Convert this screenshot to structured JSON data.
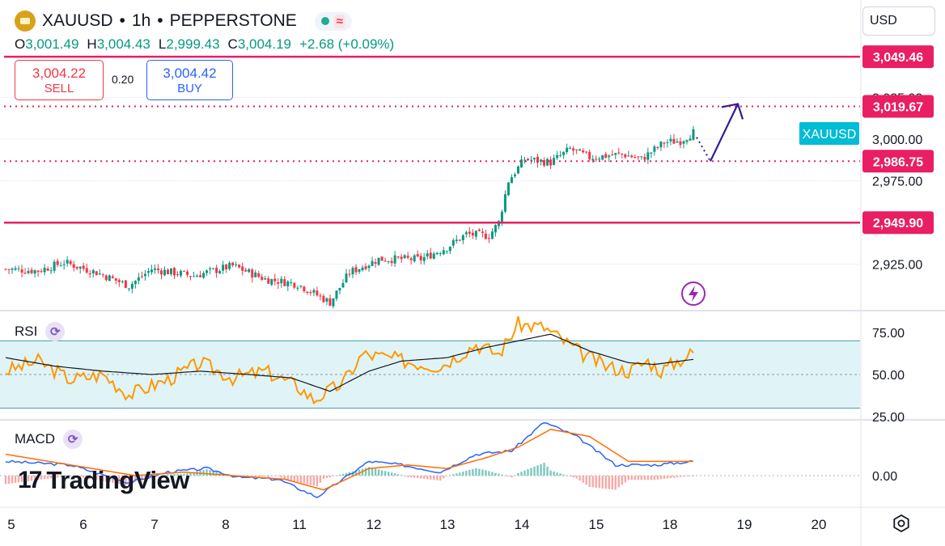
{
  "header": {
    "symbol": "XAUUSD",
    "interval": "1h",
    "exchange": "PEPPERSTONE",
    "coin_icon": "gold-coin-icon",
    "market_status_icon": "market-open-dot-icon",
    "wave_icon": "approx-wave-icon"
  },
  "ohlc": {
    "open_label": "O",
    "open": "3,001.49",
    "high_label": "H",
    "high": "3,004.43",
    "low_label": "L",
    "low": "2,999.43",
    "close_label": "C",
    "close": "3,004.19",
    "change": "+2.68 (+0.09%)"
  },
  "trade": {
    "sell_price": "3,004.22",
    "sell_label": "SELL",
    "spread": "0.20",
    "buy_price": "3,004.42",
    "buy_label": "BUY"
  },
  "currency_button": "USD",
  "rsi_label": "RSI",
  "macd_label": "MACD",
  "logo_text": "TradingView",
  "colors": {
    "up": "#089981",
    "down": "#f23645",
    "level": "#e91e63",
    "arrow": "#311b92",
    "rsi": "#ff9800",
    "rsi_band": "#e0f4f7",
    "macd": "#2962ff",
    "signal": "#ff6d00",
    "tag": "#00bcd4"
  },
  "chart_data": {
    "type": "candlestick",
    "symbol_tag": "XAUUSD",
    "x_tick_labels": [
      "5",
      "6",
      "7",
      "8",
      "11",
      "12",
      "13",
      "14",
      "15",
      "18",
      "19",
      "20"
    ],
    "price_axis_ticks": [
      "3,025.00",
      "3,000.00",
      "2,975.00",
      "2,925.00"
    ],
    "price_axis_values": [
      3025,
      3000,
      2975,
      2925
    ],
    "levels": [
      {
        "value": 3049.46,
        "label": "3,049.46",
        "style": "solid"
      },
      {
        "value": 3019.67,
        "label": "3,019.67",
        "style": "dotted"
      },
      {
        "value": 2986.75,
        "label": "2,986.75",
        "style": "dotted"
      },
      {
        "value": 2949.9,
        "label": "2,949.90",
        "style": "solid"
      }
    ],
    "price_waypoints": [
      {
        "bar": 0,
        "price": 2922
      },
      {
        "bar": 10,
        "price": 2921
      },
      {
        "bar": 18,
        "price": 2926
      },
      {
        "bar": 28,
        "price": 2920
      },
      {
        "bar": 38,
        "price": 2912
      },
      {
        "bar": 45,
        "price": 2922
      },
      {
        "bar": 58,
        "price": 2918
      },
      {
        "bar": 70,
        "price": 2924
      },
      {
        "bar": 80,
        "price": 2916
      },
      {
        "bar": 90,
        "price": 2913
      },
      {
        "bar": 100,
        "price": 2902
      },
      {
        "bar": 106,
        "price": 2920
      },
      {
        "bar": 115,
        "price": 2928
      },
      {
        "bar": 128,
        "price": 2928
      },
      {
        "bar": 136,
        "price": 2935
      },
      {
        "bar": 142,
        "price": 2943
      },
      {
        "bar": 149,
        "price": 2942
      },
      {
        "bar": 152,
        "price": 2950
      },
      {
        "bar": 155,
        "price": 2975
      },
      {
        "bar": 160,
        "price": 2988
      },
      {
        "bar": 168,
        "price": 2986
      },
      {
        "bar": 174,
        "price": 2994
      },
      {
        "bar": 180,
        "price": 2989
      },
      {
        "bar": 190,
        "price": 2991
      },
      {
        "bar": 196,
        "price": 2988
      },
      {
        "bar": 203,
        "price": 2998
      },
      {
        "bar": 208,
        "price": 2999
      },
      {
        "bar": 212,
        "price": 3004
      }
    ],
    "projection_arrow": {
      "from_price": 2986.75,
      "to_price": 3019.67
    },
    "rsi": {
      "axis_ticks": [
        "75.00",
        "50.00",
        "25.00"
      ],
      "axis_values": [
        75,
        50,
        25
      ],
      "band": [
        30,
        70
      ],
      "waypoints": [
        {
          "bar": 0,
          "v": 52
        },
        {
          "bar": 10,
          "v": 58
        },
        {
          "bar": 20,
          "v": 47
        },
        {
          "bar": 30,
          "v": 50
        },
        {
          "bar": 38,
          "v": 38
        },
        {
          "bar": 50,
          "v": 47
        },
        {
          "bar": 60,
          "v": 57
        },
        {
          "bar": 70,
          "v": 48
        },
        {
          "bar": 80,
          "v": 52
        },
        {
          "bar": 90,
          "v": 43
        },
        {
          "bar": 95,
          "v": 35
        },
        {
          "bar": 104,
          "v": 45
        },
        {
          "bar": 110,
          "v": 62
        },
        {
          "bar": 118,
          "v": 60
        },
        {
          "bar": 126,
          "v": 57
        },
        {
          "bar": 134,
          "v": 55
        },
        {
          "bar": 145,
          "v": 68
        },
        {
          "bar": 152,
          "v": 62
        },
        {
          "bar": 158,
          "v": 80
        },
        {
          "bar": 166,
          "v": 78
        },
        {
          "bar": 178,
          "v": 62
        },
        {
          "bar": 185,
          "v": 55
        },
        {
          "bar": 192,
          "v": 52
        },
        {
          "bar": 198,
          "v": 58
        },
        {
          "bar": 202,
          "v": 52
        },
        {
          "bar": 208,
          "v": 59
        },
        {
          "bar": 212,
          "v": 63
        }
      ],
      "ma_waypoints": [
        {
          "bar": 0,
          "v": 60
        },
        {
          "bar": 15,
          "v": 55
        },
        {
          "bar": 30,
          "v": 52
        },
        {
          "bar": 45,
          "v": 50
        },
        {
          "bar": 60,
          "v": 52
        },
        {
          "bar": 75,
          "v": 50
        },
        {
          "bar": 88,
          "v": 48
        },
        {
          "bar": 100,
          "v": 40
        },
        {
          "bar": 112,
          "v": 52
        },
        {
          "bar": 122,
          "v": 58
        },
        {
          "bar": 136,
          "v": 60
        },
        {
          "bar": 148,
          "v": 66
        },
        {
          "bar": 158,
          "v": 70
        },
        {
          "bar": 168,
          "v": 74
        },
        {
          "bar": 180,
          "v": 64
        },
        {
          "bar": 192,
          "v": 57
        },
        {
          "bar": 200,
          "v": 56
        },
        {
          "bar": 212,
          "v": 59
        }
      ]
    },
    "macd": {
      "axis_ticks": [
        "0.00"
      ],
      "axis_values": [
        0
      ],
      "macd_waypoints": [
        {
          "bar": 0,
          "v": 4
        },
        {
          "bar": 20,
          "v": 3
        },
        {
          "bar": 38,
          "v": -2
        },
        {
          "bar": 50,
          "v": 1
        },
        {
          "bar": 62,
          "v": 2
        },
        {
          "bar": 72,
          "v": -0.5
        },
        {
          "bar": 84,
          "v": -1
        },
        {
          "bar": 96,
          "v": -6
        },
        {
          "bar": 112,
          "v": 4
        },
        {
          "bar": 122,
          "v": 3
        },
        {
          "bar": 134,
          "v": 1
        },
        {
          "bar": 145,
          "v": 6
        },
        {
          "bar": 156,
          "v": 7
        },
        {
          "bar": 166,
          "v": 15
        },
        {
          "bar": 176,
          "v": 11
        },
        {
          "bar": 188,
          "v": 3
        },
        {
          "bar": 200,
          "v": 3
        },
        {
          "bar": 212,
          "v": 4
        }
      ],
      "signal_waypoints": [
        {
          "bar": 0,
          "v": 6
        },
        {
          "bar": 20,
          "v": 3
        },
        {
          "bar": 40,
          "v": 0
        },
        {
          "bar": 55,
          "v": 1
        },
        {
          "bar": 70,
          "v": 0
        },
        {
          "bar": 86,
          "v": -1
        },
        {
          "bar": 98,
          "v": -4
        },
        {
          "bar": 112,
          "v": 2
        },
        {
          "bar": 124,
          "v": 3
        },
        {
          "bar": 136,
          "v": 2
        },
        {
          "bar": 148,
          "v": 5
        },
        {
          "bar": 158,
          "v": 8
        },
        {
          "bar": 168,
          "v": 13
        },
        {
          "bar": 180,
          "v": 11
        },
        {
          "bar": 192,
          "v": 4
        },
        {
          "bar": 212,
          "v": 4
        }
      ]
    }
  }
}
